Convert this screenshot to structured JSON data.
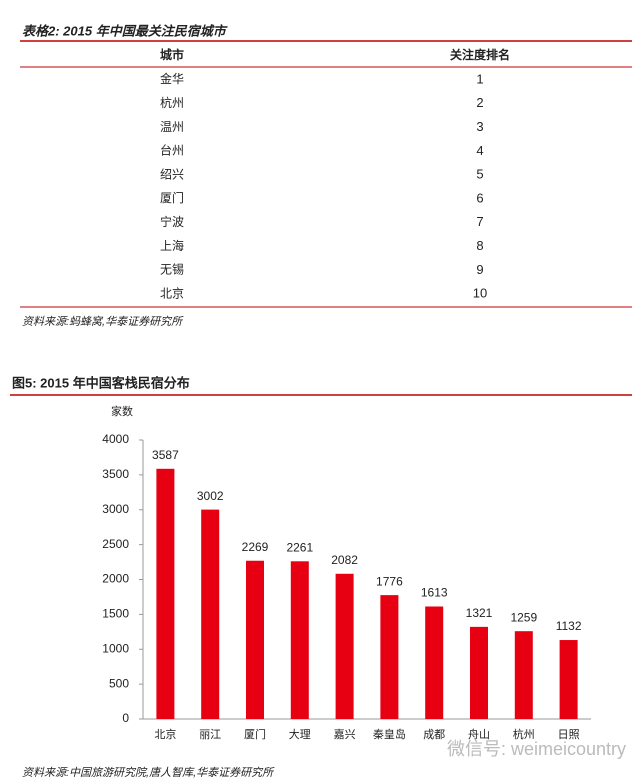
{
  "table": {
    "title": "表格2:   2015 年中国最关注民宿城市",
    "headers": [
      "城市",
      "关注度排名"
    ],
    "rows": [
      [
        "金华",
        1
      ],
      [
        "杭州",
        2
      ],
      [
        "温州",
        3
      ],
      [
        "台州",
        4
      ],
      [
        "绍兴",
        5
      ],
      [
        "厦门",
        6
      ],
      [
        "宁波",
        7
      ],
      [
        "上海",
        8
      ],
      [
        "无锡",
        9
      ],
      [
        "北京",
        10
      ]
    ],
    "source": "资料来源:蚂蜂窝,华泰证券研究所"
  },
  "chart_data": {
    "type": "bar",
    "title": "图5:   2015 年中国客栈民宿分布",
    "y_label": "家数",
    "categories": [
      "北京",
      "丽江",
      "厦门",
      "大理",
      "嘉兴",
      "秦皇岛",
      "成都",
      "舟山",
      "杭州",
      "日照"
    ],
    "values": [
      3587,
      3002,
      2269,
      2261,
      2082,
      1776,
      1613,
      1321,
      1259,
      1132
    ],
    "color": "#e60012",
    "ylim": [
      0,
      4000
    ],
    "yticks": [
      0,
      500,
      1000,
      1500,
      2000,
      2500,
      3000,
      3500,
      4000
    ],
    "source": "资料来源:中国旅游研究院,唐人智库,华泰证券研究所"
  },
  "watermark": "微信号: weimeicountry"
}
